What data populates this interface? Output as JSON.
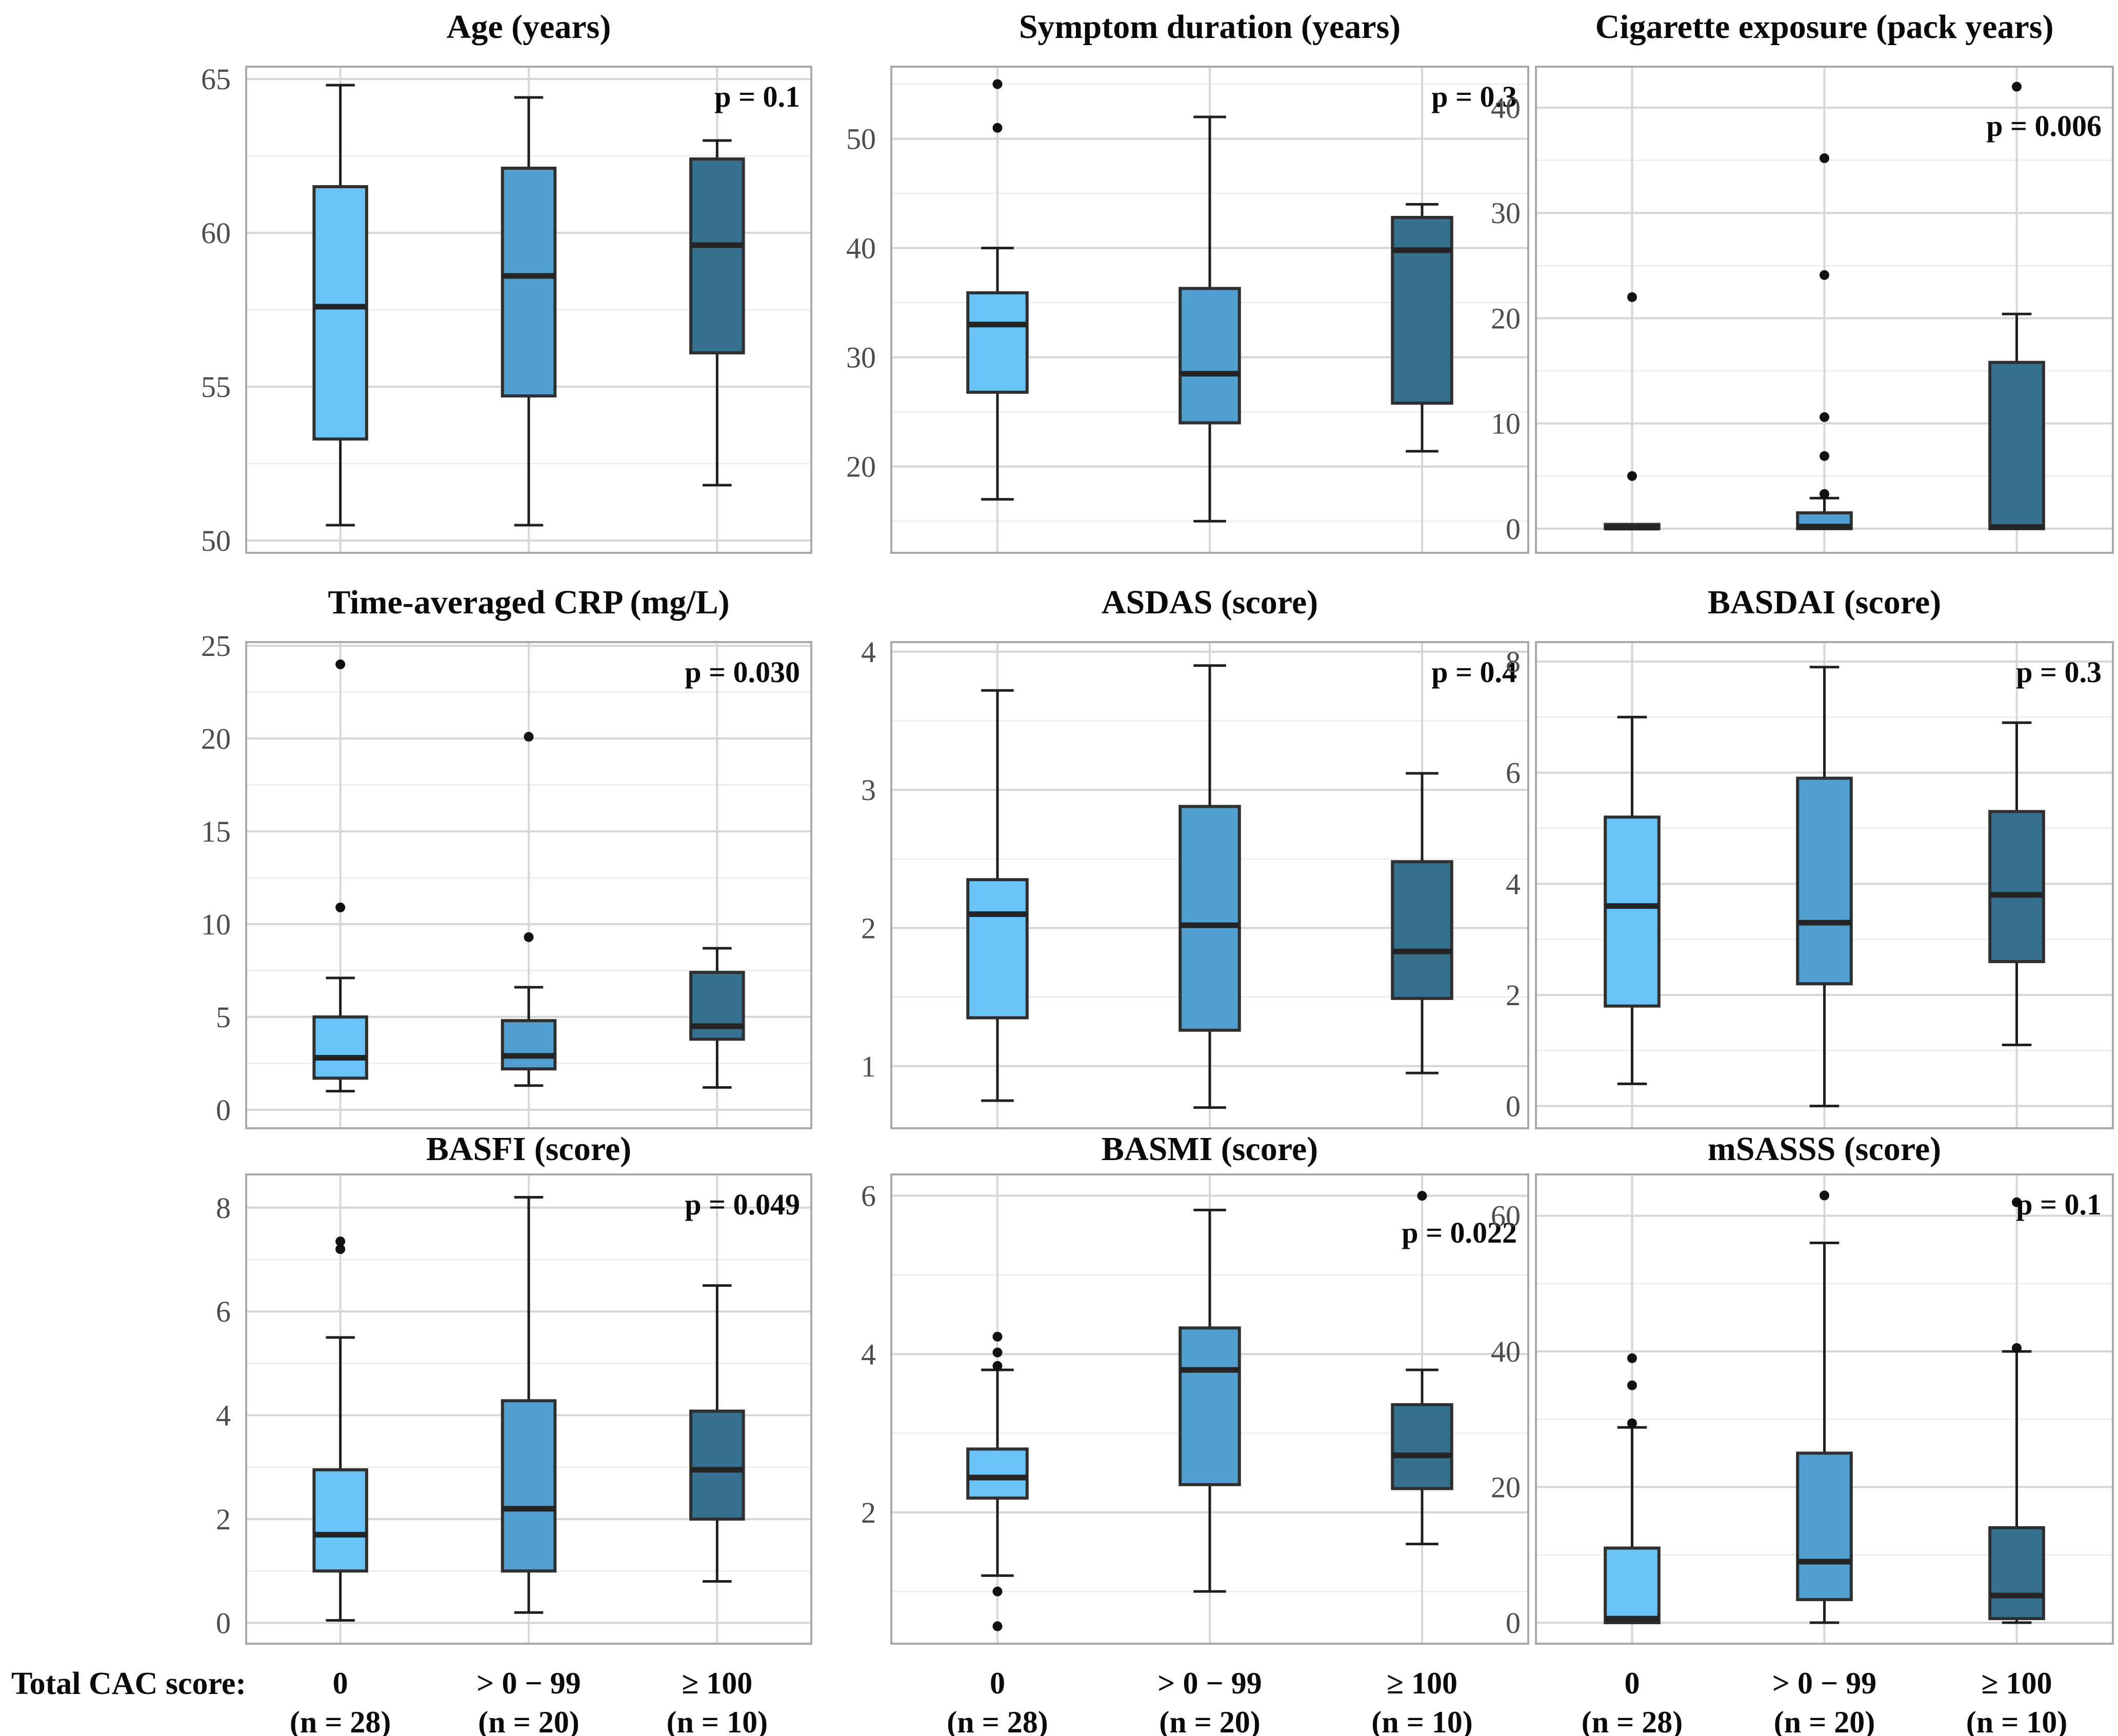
{
  "figure": {
    "group_axis_label": "Total CAC score:",
    "categories": [
      {
        "line1": "0",
        "line2": "(n = 28)"
      },
      {
        "line1": "> 0 − 99",
        "line2": "(n = 20)"
      },
      {
        "line1": "≥ 100",
        "line2": "(n = 10)"
      }
    ],
    "group_colors": [
      "#69c3f6",
      "#509fd0",
      "#35708f"
    ],
    "style_colors": {
      "box_outline": "#2f2f2f",
      "whisker": "#1e1e1e",
      "median": "#242424",
      "outlier": "#111111",
      "grid_major": "#d6d6d6",
      "grid_minor": "#ebebeb",
      "frame": "#a9a9a9",
      "tick_text": "#4c4c4c",
      "text": "#0a0a0a"
    }
  },
  "chart_data": {
    "type": "boxplot-grid",
    "group_variable": "Total CAC score",
    "groups": [
      "0 (n = 28)",
      "> 0 − 99 (n = 20)",
      "≥ 100 (n = 10)"
    ],
    "panels": [
      {
        "title": "Age (years)",
        "p_label": "p = 0.1",
        "p_offset": 0,
        "ylim": [
          49.6,
          65.4
        ],
        "yticks": [
          50,
          55,
          60,
          65
        ],
        "boxes": [
          {
            "whisker_low": 50.5,
            "q1": 53.3,
            "median": 57.6,
            "q3": 61.5,
            "whisker_high": 64.8,
            "outliers": []
          },
          {
            "whisker_low": 50.5,
            "q1": 54.7,
            "median": 58.6,
            "q3": 62.1,
            "whisker_high": 64.4,
            "outliers": []
          },
          {
            "whisker_low": 51.8,
            "q1": 56.1,
            "median": 59.6,
            "q3": 62.4,
            "whisker_high": 63.0,
            "outliers": []
          }
        ]
      },
      {
        "title": "Symptom duration (years)",
        "p_label": "p = 0.3",
        "p_offset": 0,
        "ylim": [
          12.1,
          56.6
        ],
        "yticks": [
          20,
          30,
          40,
          50
        ],
        "boxes": [
          {
            "whisker_low": 17,
            "q1": 26.8,
            "median": 33,
            "q3": 35.9,
            "whisker_high": 40,
            "outliers": [
              55,
              51
            ]
          },
          {
            "whisker_low": 15,
            "q1": 24,
            "median": 28.5,
            "q3": 36.3,
            "whisker_high": 52,
            "outliers": []
          },
          {
            "whisker_low": 21.4,
            "q1": 25.8,
            "median": 39.8,
            "q3": 42.8,
            "whisker_high": 44,
            "outliers": []
          }
        ]
      },
      {
        "title": "Cigarette exposure (pack years)",
        "p_label": "p = 0.006",
        "p_offset": 0.06,
        "ylim": [
          -2.3,
          43.9
        ],
        "yticks": [
          0,
          10,
          20,
          30,
          40
        ],
        "boxes": [
          {
            "whisker_low": 0,
            "q1": 0,
            "median": 0.1,
            "q3": 0.4,
            "whisker_high": 0.4,
            "outliers": [
              22,
              5
            ]
          },
          {
            "whisker_low": 0,
            "q1": 0,
            "median": 0.2,
            "q3": 1.5,
            "whisker_high": 2.9,
            "outliers": [
              35.2,
              24.1,
              10.6,
              6.9,
              3.3
            ]
          },
          {
            "whisker_low": 0,
            "q1": 0,
            "median": 0.15,
            "q3": 15.8,
            "whisker_high": 20.4,
            "outliers": [
              42
            ]
          }
        ]
      },
      {
        "title": "Time-averaged CRP (mg/L)",
        "p_label": "p = 0.030",
        "p_offset": 0,
        "ylim": [
          -1.0,
          25.2
        ],
        "yticks": [
          0,
          5,
          10,
          15,
          20,
          25
        ],
        "boxes": [
          {
            "whisker_low": 1.0,
            "q1": 1.7,
            "median": 2.8,
            "q3": 5.0,
            "whisker_high": 7.1,
            "outliers": [
              24,
              10.9
            ]
          },
          {
            "whisker_low": 1.3,
            "q1": 2.2,
            "median": 2.9,
            "q3": 4.8,
            "whisker_high": 6.6,
            "outliers": [
              20.1,
              9.3
            ]
          },
          {
            "whisker_low": 1.2,
            "q1": 3.8,
            "median": 4.5,
            "q3": 7.4,
            "whisker_high": 8.7,
            "outliers": []
          }
        ]
      },
      {
        "title": "ASDAS (score)",
        "p_label": "p = 0.4",
        "p_offset": 0,
        "ylim": [
          0.55,
          4.07
        ],
        "yticks": [
          1,
          2,
          3,
          4
        ],
        "boxes": [
          {
            "whisker_low": 0.75,
            "q1": 1.35,
            "median": 2.1,
            "q3": 2.35,
            "whisker_high": 3.72,
            "outliers": []
          },
          {
            "whisker_low": 0.7,
            "q1": 1.26,
            "median": 2.02,
            "q3": 2.88,
            "whisker_high": 3.9,
            "outliers": []
          },
          {
            "whisker_low": 0.95,
            "q1": 1.49,
            "median": 1.83,
            "q3": 2.48,
            "whisker_high": 3.12,
            "outliers": []
          }
        ]
      },
      {
        "title": "BASDAI (score)",
        "p_label": "p = 0.3",
        "p_offset": 0,
        "ylim": [
          -0.4,
          8.35
        ],
        "yticks": [
          0,
          2,
          4,
          6,
          8
        ],
        "boxes": [
          {
            "whisker_low": 0.4,
            "q1": 1.8,
            "median": 3.6,
            "q3": 5.2,
            "whisker_high": 7.0,
            "outliers": []
          },
          {
            "whisker_low": 0.0,
            "q1": 2.2,
            "median": 3.3,
            "q3": 5.9,
            "whisker_high": 7.9,
            "outliers": []
          },
          {
            "whisker_low": 1.1,
            "q1": 2.6,
            "median": 3.8,
            "q3": 5.3,
            "whisker_high": 6.9,
            "outliers": []
          }
        ]
      },
      {
        "title": "BASFI (score)",
        "p_label": "p = 0.049",
        "p_offset": 0,
        "ylim": [
          -0.4,
          8.64
        ],
        "yticks": [
          0,
          2,
          4,
          6,
          8
        ],
        "boxes": [
          {
            "whisker_low": 0.05,
            "q1": 1.0,
            "median": 1.7,
            "q3": 2.95,
            "whisker_high": 5.5,
            "outliers": [
              7.35,
              7.2
            ]
          },
          {
            "whisker_low": 0.2,
            "q1": 1.0,
            "median": 2.2,
            "q3": 4.28,
            "whisker_high": 8.2,
            "outliers": []
          },
          {
            "whisker_low": 0.8,
            "q1": 2.0,
            "median": 2.95,
            "q3": 4.08,
            "whisker_high": 6.5,
            "outliers": []
          }
        ]
      },
      {
        "title": "BASMI (score)",
        "p_label": "p = 0.022",
        "p_offset": 0.06,
        "ylim": [
          0.34,
          6.27
        ],
        "yticks": [
          2,
          4,
          6
        ],
        "boxes": [
          {
            "whisker_low": 1.2,
            "q1": 2.18,
            "median": 2.44,
            "q3": 2.8,
            "whisker_high": 3.8,
            "outliers": [
              4.22,
              4.02,
              3.85,
              1.0,
              0.56
            ]
          },
          {
            "whisker_low": 1.0,
            "q1": 2.35,
            "median": 3.8,
            "q3": 4.33,
            "whisker_high": 5.82,
            "outliers": []
          },
          {
            "whisker_low": 1.6,
            "q1": 2.3,
            "median": 2.72,
            "q3": 3.36,
            "whisker_high": 3.8,
            "outliers": [
              6.0
            ]
          }
        ]
      },
      {
        "title": "mSASSS (score)",
        "p_label": "p = 0.1",
        "p_offset": 0,
        "ylim": [
          -3.1,
          66.1
        ],
        "yticks": [
          0,
          20,
          40,
          60
        ],
        "boxes": [
          {
            "whisker_low": 0,
            "q1": 0,
            "median": 0.6,
            "q3": 11,
            "whisker_high": 28.8,
            "outliers": [
              39,
              35,
              29.4
            ]
          },
          {
            "whisker_low": 0,
            "q1": 3.4,
            "median": 9,
            "q3": 25,
            "whisker_high": 56,
            "outliers": [
              63
            ]
          },
          {
            "whisker_low": 0,
            "q1": 0.6,
            "median": 4,
            "q3": 14,
            "whisker_high": 40,
            "outliers": [
              62,
              40.5
            ]
          }
        ]
      }
    ]
  }
}
